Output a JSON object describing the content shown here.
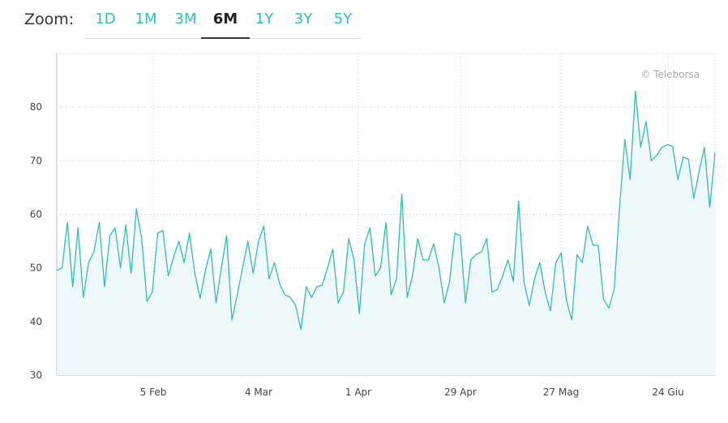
{
  "zoom": {
    "label": "Zoom:",
    "options": [
      "1D",
      "1M",
      "3M",
      "6M",
      "1Y",
      "3Y",
      "5Y"
    ],
    "selected": "6M"
  },
  "credit": "© Teleborsa",
  "colors": {
    "line": "#2bbfb3",
    "fill": "#eef8f8",
    "grid": "#cccccc",
    "accent": "#2bbfbf"
  },
  "chart_data": {
    "type": "area",
    "title": "",
    "xlabel": "",
    "ylabel": "",
    "ylim": [
      30,
      90
    ],
    "yticks": [
      30,
      40,
      50,
      60,
      70,
      80
    ],
    "x_tick_labels": [
      "5 Feb",
      "4 Mar",
      "1 Apr",
      "29 Apr",
      "27 Mag",
      "24 Giu"
    ],
    "grid": true,
    "values": [
      49.5,
      50,
      58.5,
      46.5,
      57.5,
      44.5,
      51,
      53,
      58.5,
      46.5,
      56,
      57.5,
      50,
      58,
      49,
      61,
      55.5,
      43.8,
      45.5,
      56.5,
      57,
      48.5,
      52,
      55,
      51,
      56.5,
      49,
      44.3,
      49.5,
      53.5,
      43.5,
      50,
      56,
      40.3,
      45,
      50,
      55,
      49,
      55,
      57.8,
      48,
      51,
      47,
      45,
      44.5,
      43,
      38.5,
      46.5,
      44.5,
      46.5,
      46.8,
      50,
      53.5,
      43.5,
      45.5,
      55.5,
      51.5,
      41.5,
      54.5,
      57.5,
      48.5,
      50,
      58.5,
      45,
      48,
      63.8,
      44.5,
      48.5,
      55.5,
      51.5,
      51.5,
      54.5,
      50,
      43.5,
      47.5,
      56.5,
      56,
      43.5,
      51.5,
      52.5,
      53,
      55.5,
      45.5,
      46,
      48.5,
      51.5,
      47.5,
      62.5,
      47.5,
      43,
      48,
      51,
      45.5,
      42,
      51,
      52.8,
      44,
      40.3,
      52.5,
      51,
      57.8,
      54.3,
      54.2,
      44.2,
      42.5,
      46,
      61,
      74,
      66.5,
      83,
      72.5,
      77.3,
      70,
      71,
      72.5,
      73,
      72.7,
      66.5,
      70.7,
      70.3,
      63,
      68,
      72.5,
      61.3,
      71.5
    ]
  }
}
